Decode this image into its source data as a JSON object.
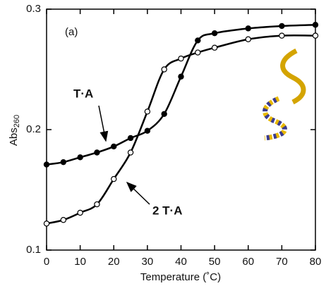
{
  "chart_data": {
    "type": "line",
    "x_label": "Temperature (˚C)",
    "y_label": "Abs",
    "y_label_sub": "260",
    "annotations": [
      "(a)",
      "T·A",
      "2 T·A"
    ],
    "xlim": [
      0,
      80
    ],
    "xticks": [
      0,
      10,
      20,
      30,
      40,
      50,
      60,
      70,
      80
    ],
    "ylim": [
      0.1,
      0.3
    ],
    "yticks": [
      0.1,
      0.2,
      0.3
    ],
    "series": [
      {
        "name": "T·A",
        "color": "#000000",
        "marker_fill": "#000000",
        "x": [
          0,
          5,
          10,
          15,
          20,
          25,
          30,
          35,
          40,
          45,
          50,
          60,
          70,
          80
        ],
        "values": [
          0.171,
          0.173,
          0.177,
          0.181,
          0.186,
          0.193,
          0.199,
          0.213,
          0.244,
          0.274,
          0.28,
          0.284,
          0.286,
          0.287
        ]
      },
      {
        "name": "2 T·A",
        "color": "#000000",
        "marker_fill": "#ffffff",
        "x": [
          0,
          5,
          10,
          15,
          20,
          25,
          30,
          35,
          40,
          45,
          50,
          60,
          70,
          80
        ],
        "values": [
          0.122,
          0.125,
          0.131,
          0.138,
          0.159,
          0.181,
          0.215,
          0.25,
          0.259,
          0.264,
          0.268,
          0.275,
          0.278,
          0.278
        ]
      }
    ]
  }
}
